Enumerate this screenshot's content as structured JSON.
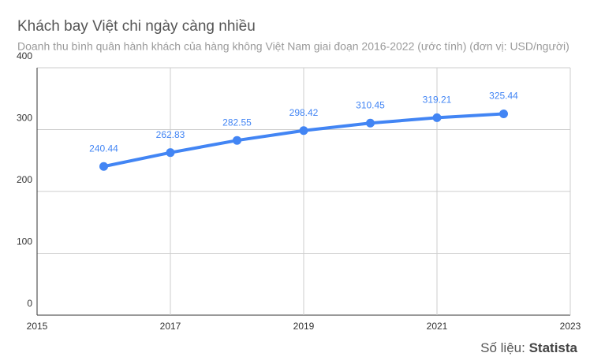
{
  "chart_data": {
    "type": "line",
    "title": "Khách bay Việt chi ngày càng nhiều",
    "subtitle": "Doanh thu bình quân hành khách của hàng không Việt Nam giai đoạn 2016-2022 (ước tính) (đơn vị: USD/người)",
    "x": [
      2016,
      2017,
      2018,
      2019,
      2020,
      2021,
      2022
    ],
    "values": [
      240.44,
      262.83,
      282.55,
      298.42,
      310.45,
      319.21,
      325.44
    ],
    "color": "#4285f4",
    "xlim": [
      2015,
      2023
    ],
    "xticks": [
      2015,
      2017,
      2019,
      2021,
      2023
    ],
    "ylim": [
      0,
      400
    ],
    "yticks": [
      0,
      100,
      200,
      300,
      400
    ],
    "grid": true,
    "source_label": "Số liệu:",
    "source_name": "Statista"
  }
}
